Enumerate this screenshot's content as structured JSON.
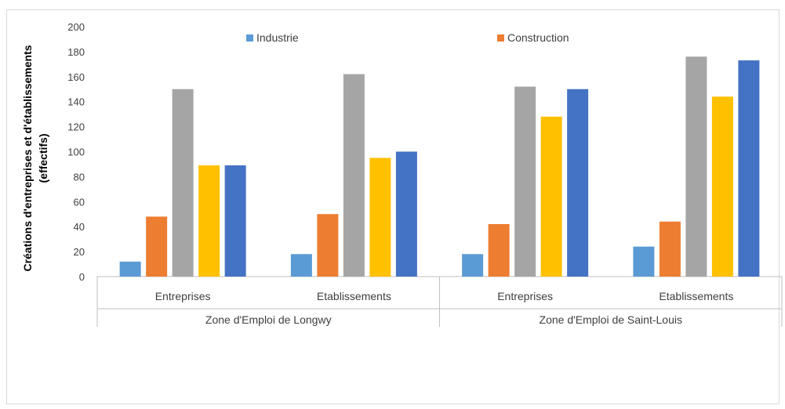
{
  "chart_data": {
    "type": "bar",
    "ylabel_lines": [
      "Créations d'entreprises et d'établissements",
      "(effectifs)"
    ],
    "ylim": [
      0,
      200
    ],
    "yticks": [
      0,
      20,
      40,
      60,
      80,
      100,
      120,
      140,
      160,
      180,
      200
    ],
    "groups": [
      {
        "label": "Zone d'Emploi  de Longwy",
        "categories": [
          "Entreprises",
          "Etablissements"
        ]
      },
      {
        "label": "Zone d'Emploi de Saint-Louis",
        "categories": [
          "Entreprises",
          "Etablissements"
        ]
      }
    ],
    "series": [
      {
        "name": "Industrie",
        "color": "#5B9BD5",
        "values": [
          12,
          18,
          18,
          24
        ]
      },
      {
        "name": "Construction",
        "color": "#ED7D31",
        "values": [
          48,
          50,
          42,
          44
        ]
      },
      {
        "color": "#A5A5A5",
        "values": [
          150,
          162,
          152,
          176
        ]
      },
      {
        "color": "#FFC000",
        "values": [
          89,
          95,
          128,
          144
        ]
      },
      {
        "color": "#4472C4",
        "values": [
          89,
          100,
          150,
          173
        ]
      }
    ],
    "grid": false,
    "legend": "top"
  }
}
